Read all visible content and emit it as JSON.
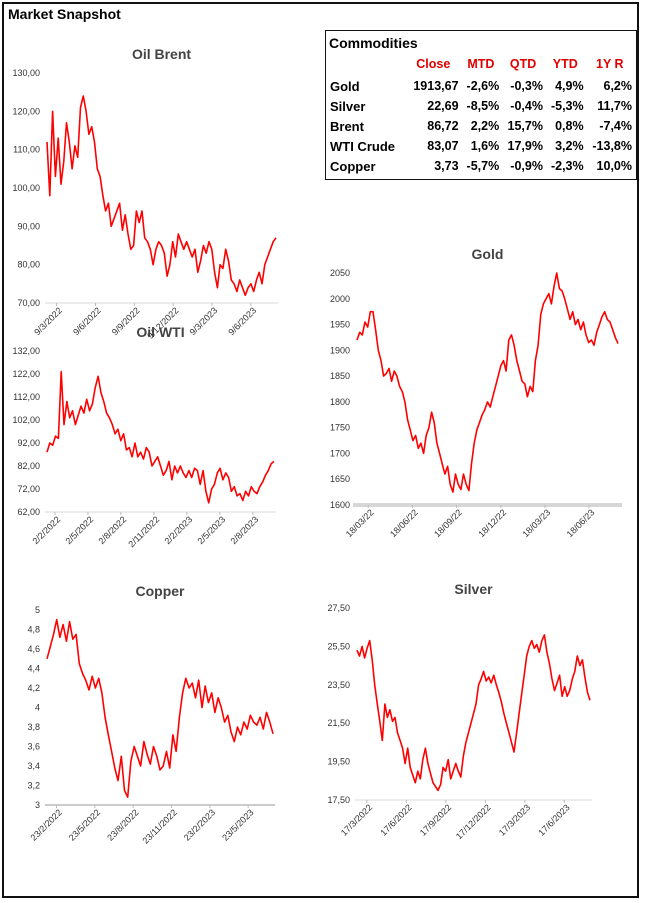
{
  "page_title": "Market Snapshot",
  "commodities": {
    "title": "Commodities",
    "headers": [
      "Close",
      "MTD",
      "QTD",
      "YTD",
      "1Y R"
    ],
    "rows": [
      {
        "name": "Gold",
        "values": [
          "1913,67",
          "-2,6%",
          "-0,3%",
          "4,9%",
          "6,2%"
        ]
      },
      {
        "name": "Silver",
        "values": [
          "22,69",
          "-8,5%",
          "-0,4%",
          "-5,3%",
          "11,7%"
        ]
      },
      {
        "name": "Brent",
        "values": [
          "86,72",
          "2,2%",
          "15,7%",
          "0,8%",
          "-7,4%"
        ]
      },
      {
        "name": "WTI Crude",
        "values": [
          "83,07",
          "1,6%",
          "17,9%",
          "3,2%",
          "-13,8%"
        ]
      },
      {
        "name": "Copper",
        "values": [
          "3,73",
          "-5,7%",
          "-0,9%",
          "-2,3%",
          "10,0%"
        ]
      }
    ]
  },
  "chart_data": [
    {
      "type": "line",
      "title": "Oil Brent",
      "ylim": [
        70,
        130
      ],
      "y_ticks": [
        "70,00",
        "80,00",
        "90,00",
        "100,00",
        "110,00",
        "120,00",
        "130,00"
      ],
      "x_ticks": [
        "9/3/2022",
        "9/6/2022",
        "9/9/2022",
        "9/12/2022",
        "9/3/2023",
        "9/6/2023"
      ],
      "grid": false,
      "color": "#ff0000",
      "series": [
        {
          "values": [
            112,
            98,
            120,
            103,
            113,
            101,
            107,
            117,
            112,
            105,
            111,
            108,
            121,
            124,
            120,
            114,
            116,
            112,
            105,
            103,
            98,
            94,
            96,
            90,
            92,
            94,
            96,
            89,
            93,
            88,
            84,
            85,
            94,
            91,
            94,
            87,
            86,
            84,
            80,
            84,
            86,
            85,
            83,
            77,
            80,
            86,
            82,
            88,
            86,
            84,
            86,
            84,
            82,
            84,
            78,
            81,
            85,
            83,
            86,
            84,
            78,
            74,
            80,
            79,
            84,
            81,
            76,
            75,
            73,
            76,
            74,
            72,
            74,
            75,
            73,
            76,
            78,
            75,
            80,
            82,
            84,
            86,
            87
          ]
        }
      ]
    },
    {
      "type": "line",
      "title": "Oil WTI",
      "ylim": [
        62,
        132
      ],
      "y_ticks": [
        "62,00",
        "72,00",
        "82,00",
        "92,00",
        "102,00",
        "112,00",
        "122,00",
        "132,00"
      ],
      "x_ticks": [
        "2/2/2022",
        "2/5/2022",
        "2/8/2022",
        "2/11/2022",
        "2/2/2023",
        "2/5/2023",
        "2/8/2023"
      ],
      "grid": false,
      "color": "#ff0000",
      "series": [
        {
          "values": [
            88,
            92,
            91,
            95,
            94,
            123,
            100,
            110,
            103,
            106,
            100,
            104,
            108,
            105,
            111,
            106,
            109,
            116,
            121,
            114,
            110,
            105,
            103,
            100,
            96,
            98,
            93,
            96,
            89,
            90,
            86,
            92,
            86,
            88,
            85,
            90,
            88,
            82,
            84,
            86,
            82,
            78,
            80,
            84,
            76,
            82,
            79,
            82,
            79,
            77,
            80,
            77,
            81,
            80,
            74,
            80,
            71,
            66,
            72,
            74,
            79,
            81,
            76,
            79,
            77,
            71,
            73,
            69,
            70,
            67,
            71,
            69,
            73,
            71,
            70,
            73,
            75,
            78,
            80,
            83,
            84
          ]
        }
      ]
    },
    {
      "type": "line",
      "title": "Copper",
      "ylim": [
        3,
        5
      ],
      "y_ticks": [
        "3",
        "3,2",
        "3,4",
        "3,6",
        "3,8",
        "4",
        "4,2",
        "4,4",
        "4,6",
        "4,8",
        "5"
      ],
      "x_ticks": [
        "23/2/2022",
        "23/5/2022",
        "23/8/2022",
        "23/11/2022",
        "23/2/2023",
        "23/5/2023"
      ],
      "grid": false,
      "color": "#ff0000",
      "series": [
        {
          "values": [
            4.5,
            4.62,
            4.75,
            4.9,
            4.72,
            4.85,
            4.68,
            4.88,
            4.7,
            4.75,
            4.45,
            4.35,
            4.28,
            4.18,
            4.32,
            4.2,
            4.3,
            4.15,
            3.9,
            3.72,
            3.55,
            3.38,
            3.25,
            3.5,
            3.15,
            3.08,
            3.45,
            3.6,
            3.5,
            3.4,
            3.65,
            3.52,
            3.42,
            3.6,
            3.5,
            3.36,
            3.4,
            3.55,
            3.38,
            3.72,
            3.55,
            3.9,
            4.15,
            4.3,
            4.2,
            4.25,
            4.1,
            4.28,
            4.0,
            4.22,
            4.05,
            4.15,
            3.95,
            4.1,
            4.0,
            3.85,
            3.92,
            3.75,
            3.65,
            3.8,
            3.72,
            3.85,
            3.78,
            3.92,
            3.85,
            3.82,
            3.9,
            3.78,
            3.95,
            3.85,
            3.73
          ]
        }
      ]
    },
    {
      "type": "line",
      "title": "Gold",
      "ylim": [
        1600,
        2050
      ],
      "y_ticks": [
        "1600",
        "1650",
        "1700",
        "1750",
        "1800",
        "1850",
        "1900",
        "1950",
        "2000",
        "2050"
      ],
      "x_ticks": [
        "18/03/22",
        "18/06/22",
        "18/09/22",
        "18/12/22",
        "18/03/23",
        "18/06/23"
      ],
      "grid": false,
      "color": "#ff0000",
      "series": [
        {
          "values": [
            1920,
            1935,
            1930,
            1955,
            1945,
            1975,
            1975,
            1940,
            1900,
            1880,
            1850,
            1855,
            1865,
            1840,
            1860,
            1850,
            1830,
            1820,
            1800,
            1765,
            1745,
            1725,
            1735,
            1710,
            1720,
            1700,
            1735,
            1750,
            1780,
            1760,
            1720,
            1700,
            1680,
            1660,
            1675,
            1640,
            1625,
            1660,
            1640,
            1630,
            1660,
            1640,
            1628,
            1680,
            1720,
            1745,
            1760,
            1775,
            1785,
            1800,
            1790,
            1810,
            1830,
            1850,
            1870,
            1880,
            1860,
            1920,
            1930,
            1910,
            1880,
            1860,
            1840,
            1835,
            1810,
            1830,
            1820,
            1880,
            1910,
            1970,
            1990,
            2000,
            2010,
            1990,
            2025,
            2050,
            2020,
            2015,
            2000,
            1980,
            1960,
            1975,
            1950,
            1960,
            1940,
            1955,
            1930,
            1915,
            1920,
            1910,
            1935,
            1950,
            1965,
            1975,
            1960,
            1955,
            1940,
            1925,
            1913
          ]
        }
      ]
    },
    {
      "type": "line",
      "title": "Silver",
      "ylim": [
        17.5,
        27.5
      ],
      "y_ticks": [
        "17,50",
        "19,50",
        "21,50",
        "23,50",
        "25,50",
        "27,50"
      ],
      "x_ticks": [
        "17/3/2022",
        "17/6/2022",
        "17/9/2022",
        "17/12/2022",
        "17/3/2023",
        "17/6/2023"
      ],
      "grid": false,
      "color": "#ff0000",
      "series": [
        {
          "values": [
            25.3,
            25.0,
            25.5,
            24.9,
            25.4,
            25.8,
            24.8,
            23.5,
            22.5,
            21.6,
            20.6,
            22.5,
            21.8,
            22.2,
            21.6,
            21.8,
            21.0,
            20.6,
            20.2,
            19.4,
            20.2,
            19.2,
            18.8,
            18.4,
            19.0,
            18.6,
            19.6,
            20.2,
            19.4,
            18.9,
            18.4,
            18.2,
            18.0,
            18.3,
            19.2,
            19.0,
            19.6,
            18.6,
            19.0,
            19.4,
            19.0,
            18.7,
            19.8,
            20.5,
            21.0,
            21.5,
            22.0,
            22.5,
            23.5,
            23.8,
            24.2,
            23.7,
            23.9,
            23.6,
            24.0,
            23.5,
            23.1,
            22.6,
            22.0,
            21.5,
            21.0,
            20.5,
            20.0,
            21.0,
            22.0,
            23.0,
            24.0,
            25.0,
            25.5,
            25.8,
            25.4,
            25.6,
            25.2,
            25.8,
            26.1,
            25.2,
            24.6,
            23.8,
            23.2,
            23.6,
            24.0,
            22.9,
            23.4,
            22.9,
            23.2,
            23.8,
            24.2,
            25.0,
            24.5,
            24.8,
            23.9,
            23.1,
            22.7
          ]
        }
      ]
    }
  ]
}
